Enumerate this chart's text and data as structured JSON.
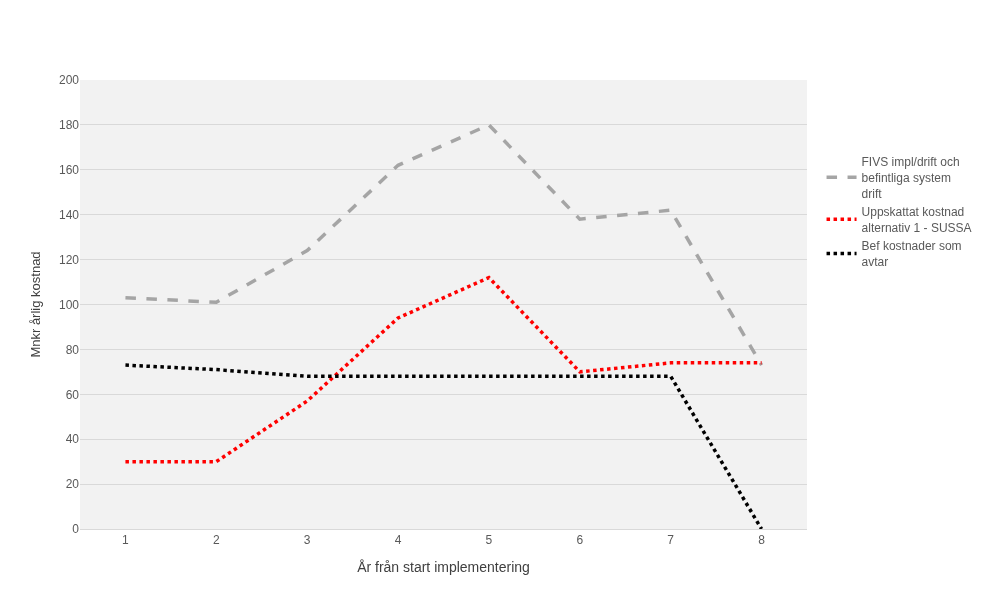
{
  "chart_data": {
    "type": "line",
    "xlabel": "År från start implementering",
    "ylabel": "Mnkr årlig kostnad",
    "categories": [
      "1",
      "2",
      "3",
      "4",
      "5",
      "6",
      "7",
      "8"
    ],
    "series": [
      {
        "name": "FIVS impl/drift och befintliga system drift",
        "color": "#a5a5a5",
        "line_style": "dashed",
        "values": [
          103,
          101,
          124,
          162,
          180,
          138,
          142,
          73
        ]
      },
      {
        "name": "Uppskattat kostnad alternativ 1 - SUSSA",
        "color": "#ff0000",
        "line_style": "dotted",
        "values": [
          30,
          30,
          57,
          94,
          112,
          70,
          74,
          74
        ]
      },
      {
        "name": "Bef kostnader som avtar",
        "color": "#000000",
        "line_style": "dotted",
        "values": [
          73,
          71,
          68,
          68,
          68,
          68,
          68,
          0
        ]
      }
    ],
    "ylim": [
      0,
      200
    ],
    "yticks": [
      0,
      20,
      40,
      60,
      80,
      100,
      120,
      140,
      160,
      180,
      200
    ],
    "grid": "y",
    "legend": "right",
    "marker": "none"
  }
}
